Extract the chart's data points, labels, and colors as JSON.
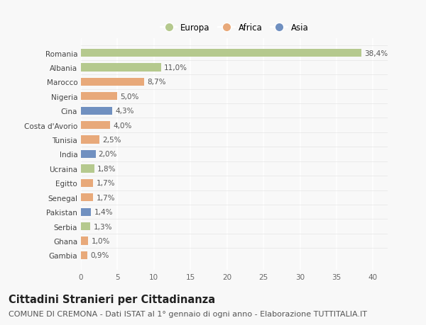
{
  "countries": [
    "Romania",
    "Albania",
    "Marocco",
    "Nigeria",
    "Cina",
    "Costa d'Avorio",
    "Tunisia",
    "India",
    "Ucraina",
    "Egitto",
    "Senegal",
    "Pakistan",
    "Serbia",
    "Ghana",
    "Gambia"
  ],
  "values": [
    38.4,
    11.0,
    8.7,
    5.0,
    4.3,
    4.0,
    2.5,
    2.0,
    1.8,
    1.7,
    1.7,
    1.4,
    1.3,
    1.0,
    0.9
  ],
  "labels": [
    "38,4%",
    "11,0%",
    "8,7%",
    "5,0%",
    "4,3%",
    "4,0%",
    "2,5%",
    "2,0%",
    "1,8%",
    "1,7%",
    "1,7%",
    "1,4%",
    "1,3%",
    "1,0%",
    "0,9%"
  ],
  "continents": [
    "Europa",
    "Europa",
    "Africa",
    "Africa",
    "Asia",
    "Africa",
    "Africa",
    "Asia",
    "Europa",
    "Africa",
    "Africa",
    "Asia",
    "Europa",
    "Africa",
    "Africa"
  ],
  "colors": {
    "Europa": "#b5c98e",
    "Africa": "#e8a97a",
    "Asia": "#7090c0"
  },
  "xlim": [
    0,
    42
  ],
  "xticks": [
    0,
    5,
    10,
    15,
    20,
    25,
    30,
    35,
    40
  ],
  "title": "Cittadini Stranieri per Cittadinanza",
  "subtitle": "COMUNE DI CREMONA - Dati ISTAT al 1° gennaio di ogni anno - Elaborazione TUTTITALIA.IT",
  "background_color": "#f8f8f8",
  "grid_color": "#ffffff",
  "bar_height": 0.55,
  "title_fontsize": 10.5,
  "subtitle_fontsize": 8.0,
  "label_fontsize": 7.5,
  "tick_fontsize": 7.5,
  "legend_fontsize": 8.5
}
